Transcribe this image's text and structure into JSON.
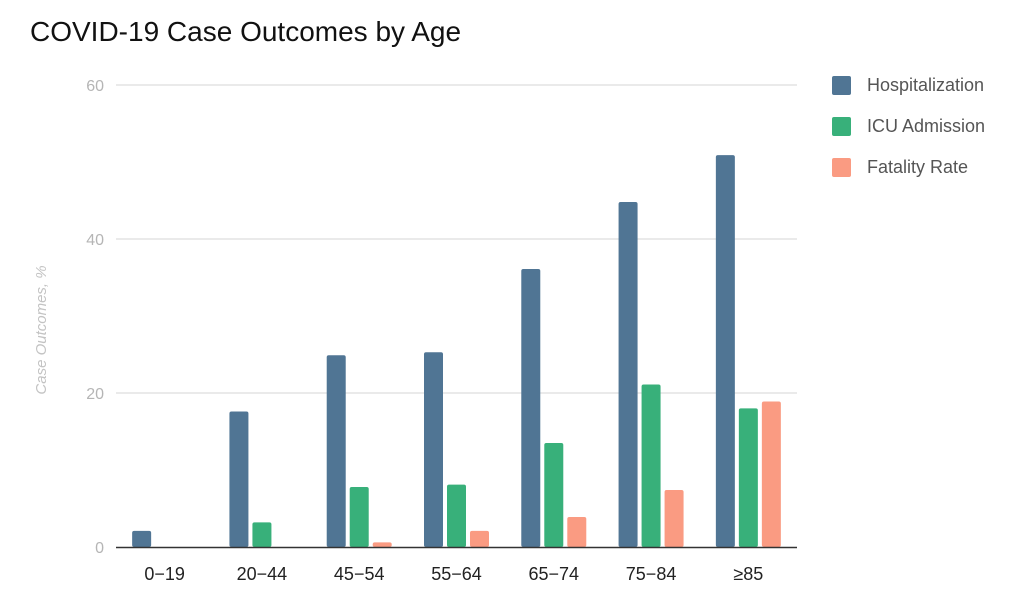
{
  "chart_data": {
    "type": "bar",
    "title": "COVID-19 Case Outcomes by Age",
    "xlabel": "",
    "ylabel": "Case Outcomes, %",
    "ylim": [
      0,
      60
    ],
    "yticks": [
      0,
      20,
      40,
      60
    ],
    "grid": true,
    "legend_position": "right",
    "categories": [
      "0−19",
      "20−44",
      "45−54",
      "55−64",
      "65−74",
      "75−84",
      "≥85"
    ],
    "series": [
      {
        "name": "Hospitalization",
        "color": "#507594",
        "values": [
          2.1,
          17.6,
          24.9,
          25.3,
          36.1,
          44.8,
          50.9
        ]
      },
      {
        "name": "ICU Admission",
        "color": "#38b07a",
        "values": [
          null,
          3.2,
          7.8,
          8.1,
          13.5,
          21.1,
          18.0
        ]
      },
      {
        "name": "Fatality Rate",
        "color": "#fa9b82",
        "values": [
          null,
          null,
          0.6,
          2.1,
          3.9,
          7.4,
          18.9
        ]
      }
    ]
  }
}
